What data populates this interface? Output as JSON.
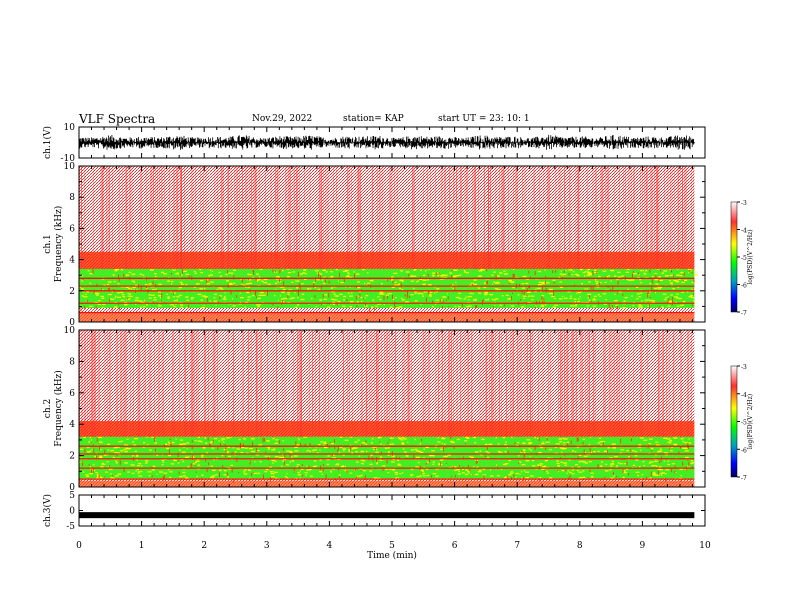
{
  "header": {
    "title": "VLF Spectra",
    "date": "Nov.29, 2022",
    "station": "station= KAP",
    "start": "start  UT =   23: 10: 1"
  },
  "colors": {
    "bg_red": "#ff0000",
    "band_yellow": "#ffff00",
    "band_green": "#00ff00",
    "cb_stops": [
      "#ffffff",
      "#ff2020",
      "#ffff00",
      "#00ff00",
      "#00a0a0",
      "#0000ff",
      "#000060"
    ]
  },
  "chart_data": [
    {
      "type": "line",
      "id": "ch1-waveform",
      "ylabel": "ch.1(V)",
      "xlim": [
        0,
        10
      ],
      "ylim": [
        -10,
        10
      ],
      "yticklabels": [
        "10",
        "-10"
      ],
      "data_end_min": 9.83,
      "amplitude_v": [
        -5,
        5
      ]
    },
    {
      "type": "heatmap",
      "id": "ch1-spectrogram",
      "ylabel": "ch.1\nFrequency (kHz)",
      "xlim": [
        0,
        10
      ],
      "ylim": [
        0,
        10
      ],
      "yticks": [
        0,
        2,
        4,
        6,
        8,
        10
      ],
      "data_end_min": 9.83,
      "bands_khz": [
        {
          "from": 0.0,
          "to": 0.6,
          "level": "high"
        },
        {
          "from": 0.9,
          "to": 3.4,
          "level": "low"
        },
        {
          "from": 3.4,
          "to": 4.5,
          "level": "mid"
        },
        {
          "from": 4.5,
          "to": 10.0,
          "level": "high"
        }
      ],
      "lines_khz": [
        0.6,
        1.2,
        2.0,
        2.3,
        2.8
      ],
      "colorbar": {
        "label": "log(PSD)(V^2/Hz)",
        "ticks": [
          -3,
          -4,
          -5,
          -6,
          -7
        ]
      }
    },
    {
      "type": "heatmap",
      "id": "ch2-spectrogram",
      "ylabel": "ch.2\nFrequency (kHz)",
      "xlim": [
        0,
        10
      ],
      "ylim": [
        0,
        10
      ],
      "yticks": [
        0,
        2,
        4,
        6,
        8,
        10
      ],
      "data_end_min": 9.83,
      "bands_khz": [
        {
          "from": 0.0,
          "to": 0.4,
          "level": "high"
        },
        {
          "from": 0.5,
          "to": 3.2,
          "level": "low"
        },
        {
          "from": 3.2,
          "to": 4.2,
          "level": "mid"
        },
        {
          "from": 4.2,
          "to": 10.0,
          "level": "high"
        }
      ],
      "lines_khz": [
        0.5,
        1.2,
        1.8,
        2.1,
        2.6
      ],
      "colorbar": {
        "label": "log(PSD)(V^2/Hz)",
        "ticks": [
          -3,
          -4,
          -5,
          -6,
          -7
        ]
      }
    },
    {
      "type": "line",
      "id": "ch3-waveform",
      "ylabel": "ch.3(V)",
      "xlim": [
        0,
        10
      ],
      "ylim": [
        -5,
        5
      ],
      "yticklabels": [
        "5",
        "0",
        "-5"
      ],
      "level_v": -1.5,
      "data_end_min": 9.83
    }
  ],
  "xaxis": {
    "label": "Time (min)",
    "ticks": [
      0,
      1,
      2,
      3,
      4,
      5,
      6,
      7,
      8,
      9,
      10
    ]
  }
}
